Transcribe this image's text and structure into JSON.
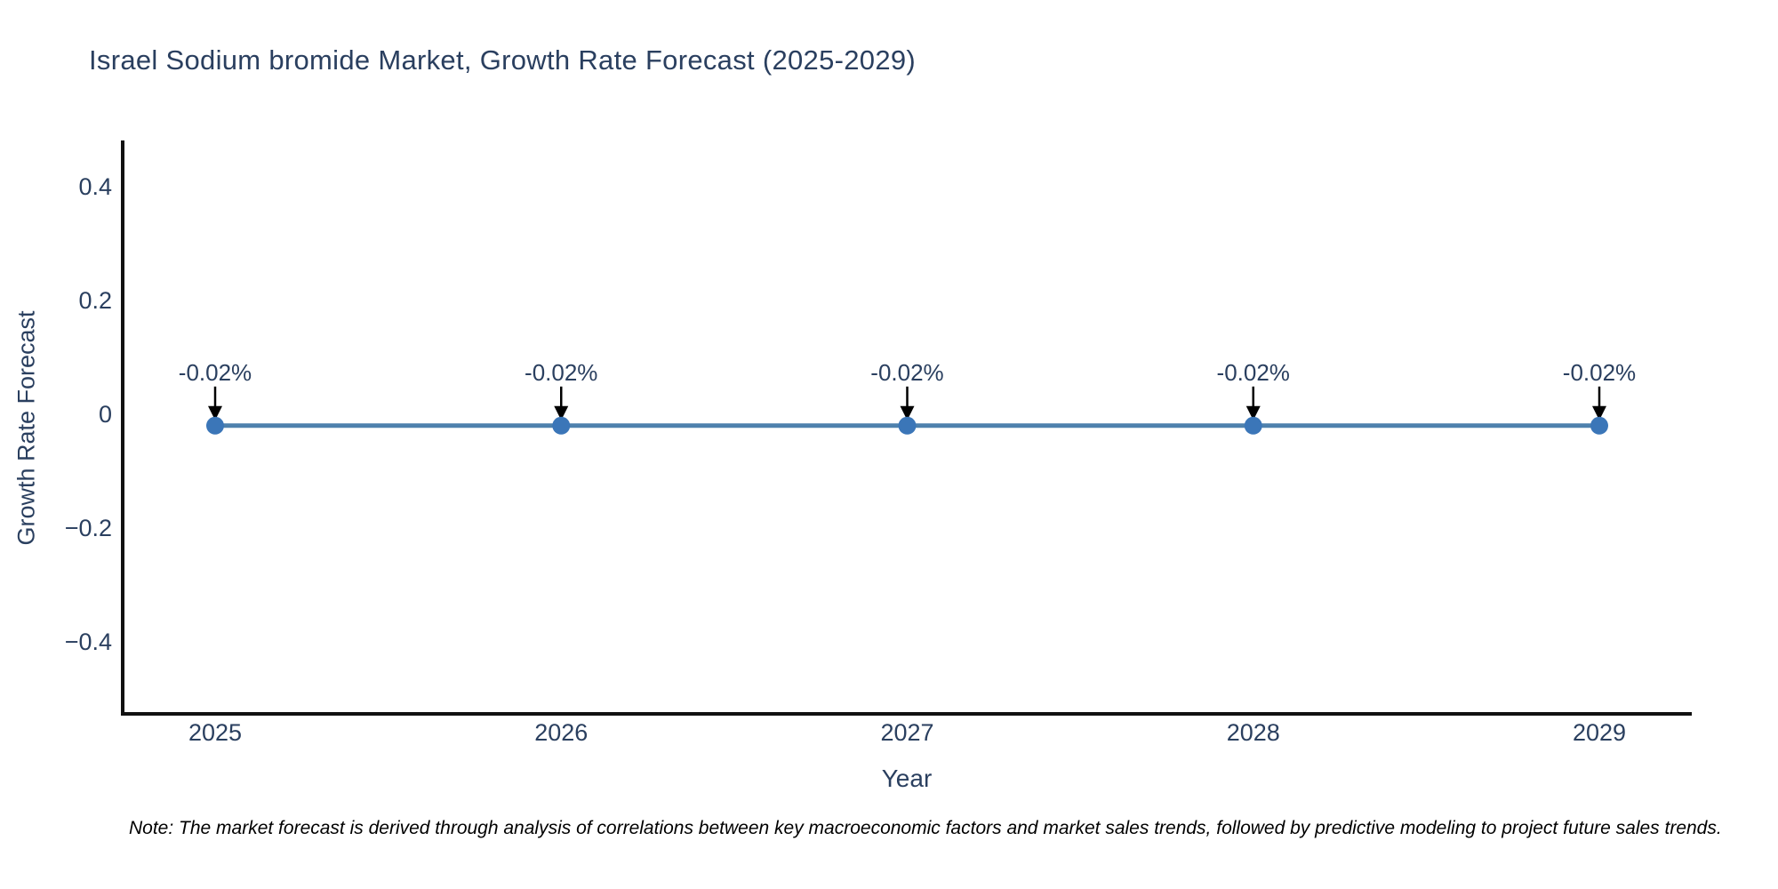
{
  "title": "Israel Sodium bromide Market, Growth Rate Forecast (2025-2029)",
  "footnote": "Note: The market forecast is derived through analysis of correlations between key macroeconomic factors and market sales trends, followed by predictive modeling to project future sales trends.",
  "chart_data": {
    "type": "line",
    "title": "Israel Sodium bromide Market, Growth Rate Forecast (2025-2029)",
    "xlabel": "Year",
    "ylabel": "Growth Rate Forecast",
    "categories": [
      "2025",
      "2026",
      "2027",
      "2028",
      "2029"
    ],
    "series": [
      {
        "name": "Growth Rate Forecast",
        "values": [
          -0.02,
          -0.02,
          -0.02,
          -0.02,
          -0.02
        ]
      }
    ],
    "point_labels": [
      "-0.02%",
      "-0.02%",
      "-0.02%",
      "-0.02%",
      "-0.02%"
    ],
    "yticks": {
      "values": [
        0.4,
        0.2,
        0,
        -0.2,
        -0.4
      ],
      "labels": [
        "0.4",
        "0.2",
        "0",
        "−0.2",
        "−0.4"
      ]
    },
    "ylim": [
      -0.53,
      0.48
    ],
    "grid": false,
    "legend": "none",
    "annotation_arrows": true,
    "colors": {
      "line": "#4e81ad",
      "marker": "#3b76b8",
      "arrow": "#000000",
      "axis": "#111111",
      "tick_text": "#2a3f5f",
      "title_text": "#2a3f5f",
      "note_text": "#000000"
    }
  }
}
